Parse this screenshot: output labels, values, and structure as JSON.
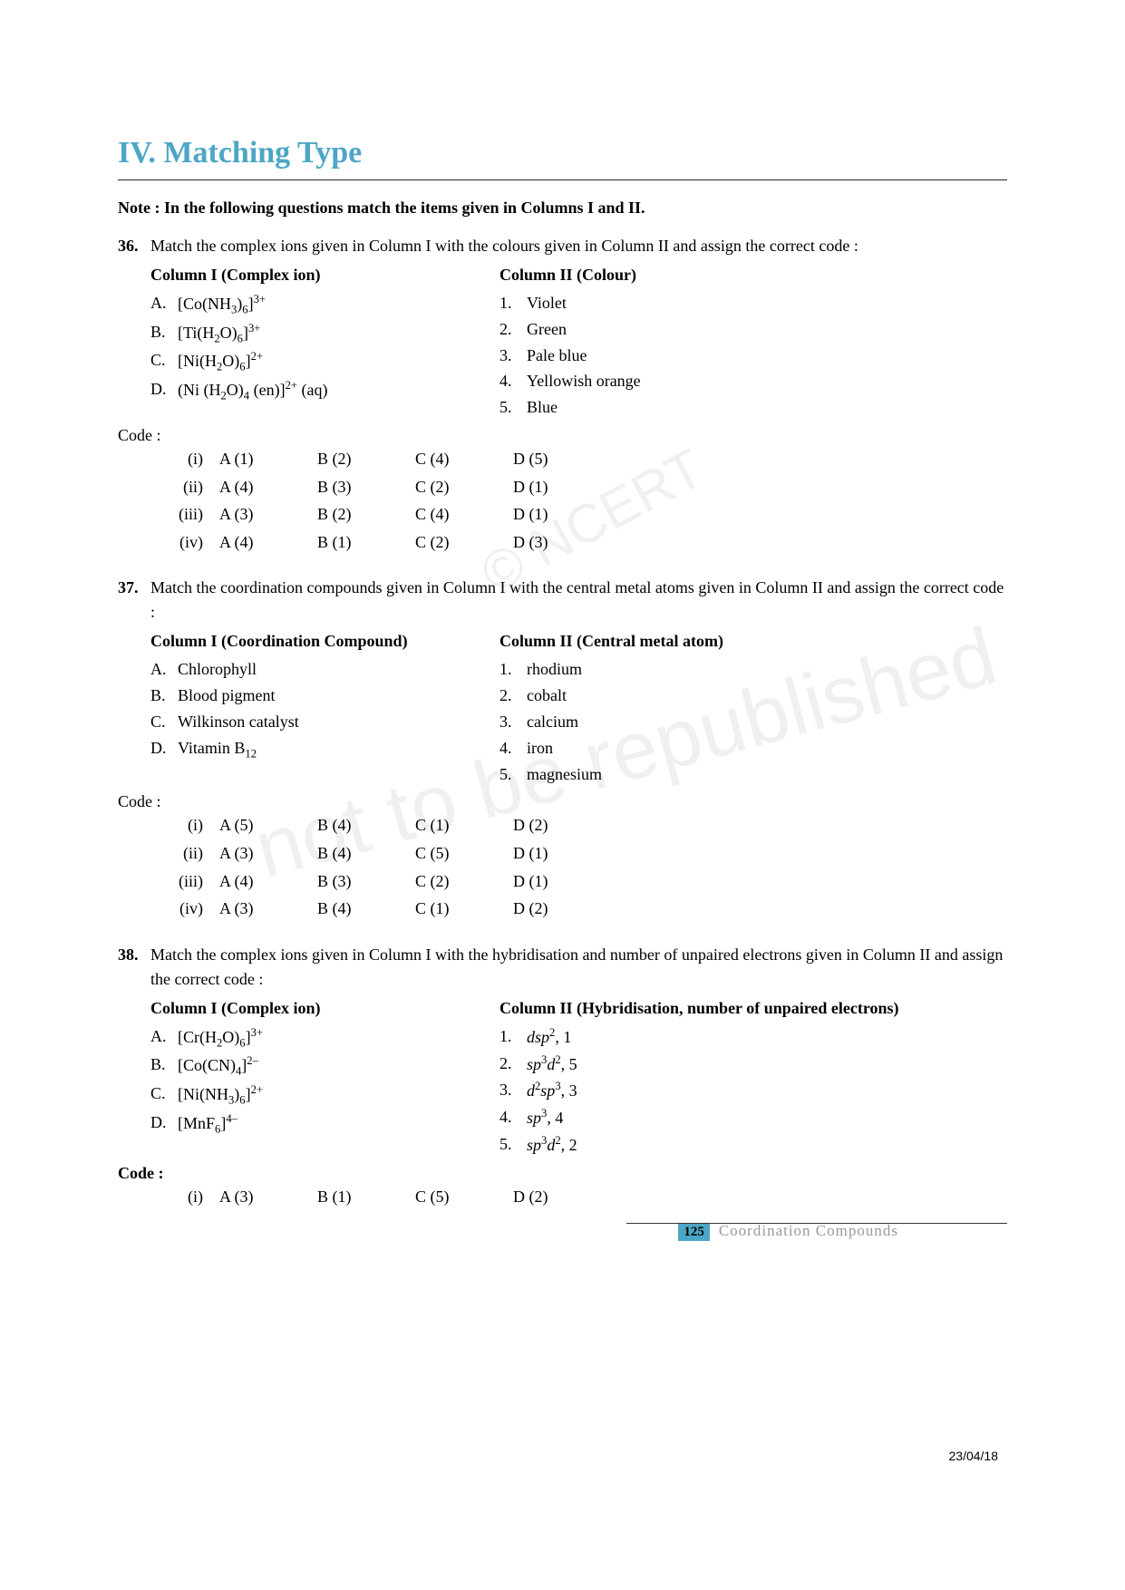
{
  "section": {
    "title": "IV. Matching Type"
  },
  "note": "Note : In the following questions match the items given in Columns I and II.",
  "questions": [
    {
      "num": "36.",
      "text": "Match the complex ions given in Column I with the colours given in Column II and assign the correct code :",
      "col1_header": "Column I (Complex ion)",
      "col2_header": "Column II (Colour)",
      "col1_items": [
        {
          "letter": "A.",
          "html": "[Co(NH<sub>3</sub>)<sub>6</sub>]<sup>3+</sup>"
        },
        {
          "letter": "B.",
          "html": "[Ti(H<sub>2</sub>O)<sub>6</sub>]<sup>3+</sup>"
        },
        {
          "letter": "C.",
          "html": "[Ni(H<sub>2</sub>O)<sub>6</sub>]<sup>2+</sup>"
        },
        {
          "letter": "D.",
          "html": "(Ni (H<sub>2</sub>O)<sub>4</sub> (en)]<sup>2+</sup> (aq)"
        }
      ],
      "col2_items": [
        {
          "num": "1.",
          "text": "Violet"
        },
        {
          "num": "2.",
          "text": "Green"
        },
        {
          "num": "3.",
          "text": "Pale blue"
        },
        {
          "num": "4.",
          "text": "Yellowish orange"
        },
        {
          "num": "5.",
          "text": "Blue"
        }
      ],
      "code_label": "Code :",
      "code_rows": [
        {
          "roman": "(i)",
          "cells": [
            "A (1)",
            "B (2)",
            "C (4)",
            "D (5)"
          ]
        },
        {
          "roman": "(ii)",
          "cells": [
            "A (4)",
            "B (3)",
            "C (2)",
            "D (1)"
          ]
        },
        {
          "roman": "(iii)",
          "cells": [
            "A (3)",
            "B (2)",
            "C (4)",
            "D (1)"
          ]
        },
        {
          "roman": "(iv)",
          "cells": [
            "A (4)",
            "B (1)",
            "C (2)",
            "D (3)"
          ]
        }
      ]
    },
    {
      "num": "37.",
      "text": "Match the coordination compounds given in Column I with the central metal atoms given in Column II and assign the correct code :",
      "col1_header": "Column I (Coordination Compound)",
      "col2_header": "Column II (Central metal atom)",
      "col1_items": [
        {
          "letter": "A.",
          "html": "Chlorophyll"
        },
        {
          "letter": "B.",
          "html": "Blood pigment"
        },
        {
          "letter": "C.",
          "html": "Wilkinson catalyst"
        },
        {
          "letter": "D.",
          "html": "Vitamin B<sub>12</sub>"
        }
      ],
      "col2_items": [
        {
          "num": "1.",
          "text": "rhodium"
        },
        {
          "num": "2.",
          "text": "cobalt"
        },
        {
          "num": "3.",
          "text": "calcium"
        },
        {
          "num": "4.",
          "text": "iron"
        },
        {
          "num": "5.",
          "text": "magnesium"
        }
      ],
      "code_label": "Code :",
      "code_rows": [
        {
          "roman": "(i)",
          "cells": [
            "A (5)",
            "B (4)",
            "C (1)",
            "D (2)"
          ]
        },
        {
          "roman": "(ii)",
          "cells": [
            "A (3)",
            "B (4)",
            "C (5)",
            "D (1)"
          ]
        },
        {
          "roman": "(iii)",
          "cells": [
            "A (4)",
            "B (3)",
            "C (2)",
            "D (1)"
          ]
        },
        {
          "roman": "(iv)",
          "cells": [
            "A (3)",
            "B (4)",
            "C (1)",
            "D (2)"
          ]
        }
      ]
    },
    {
      "num": "38.",
      "text": "Match the complex ions given in Column I with the hybridisation and number of unpaired electrons given in Column II and assign the correct code :",
      "col1_header": "Column I (Complex ion)",
      "col2_header": "Column II (Hybridisation, number of unpaired electrons)",
      "col1_items": [
        {
          "letter": "A.",
          "html": "[Cr(H<sub>2</sub>O)<sub>6</sub>]<sup>3+</sup>"
        },
        {
          "letter": "B.",
          "html": "[Co(CN)<sub>4</sub>]<sup>2–</sup>"
        },
        {
          "letter": "C.",
          "html": "[Ni(NH<sub>3</sub>)<sub>6</sub>]<sup>2+</sup>"
        },
        {
          "letter": "D.",
          "html": "[MnF<sub>6</sub>]<sup>4–</sup>"
        }
      ],
      "col2_items": [
        {
          "num": "1.",
          "html": "<span class='italic'>dsp</span><sup>2</sup>, 1"
        },
        {
          "num": "2.",
          "html": "<span class='italic'>sp</span><sup>3</sup><span class='italic'>d</span><sup>2</sup>, 5"
        },
        {
          "num": "3.",
          "html": "<span class='italic'>d</span><sup>2</sup><span class='italic'>sp</span><sup>3</sup>, 3"
        },
        {
          "num": "4.",
          "html": "<span class='italic'>sp</span><sup>3</sup>, 4"
        },
        {
          "num": "5.",
          "html": "<span class='italic'>sp</span><sup>3</sup><span class='italic'>d</span><sup>2</sup>, 2"
        }
      ],
      "code_label": "Code :",
      "code_label_bold": true,
      "code_rows": [
        {
          "roman": "(i)",
          "cells": [
            "A (3)",
            "B (1)",
            "C (5)",
            "D (2)"
          ]
        }
      ]
    }
  ],
  "footer": {
    "page_num": "125",
    "chapter": "Coordination Compounds"
  },
  "date": "23/04/18",
  "watermarks": {
    "wm1": "not to be republished",
    "wm2": "© NCERT"
  }
}
